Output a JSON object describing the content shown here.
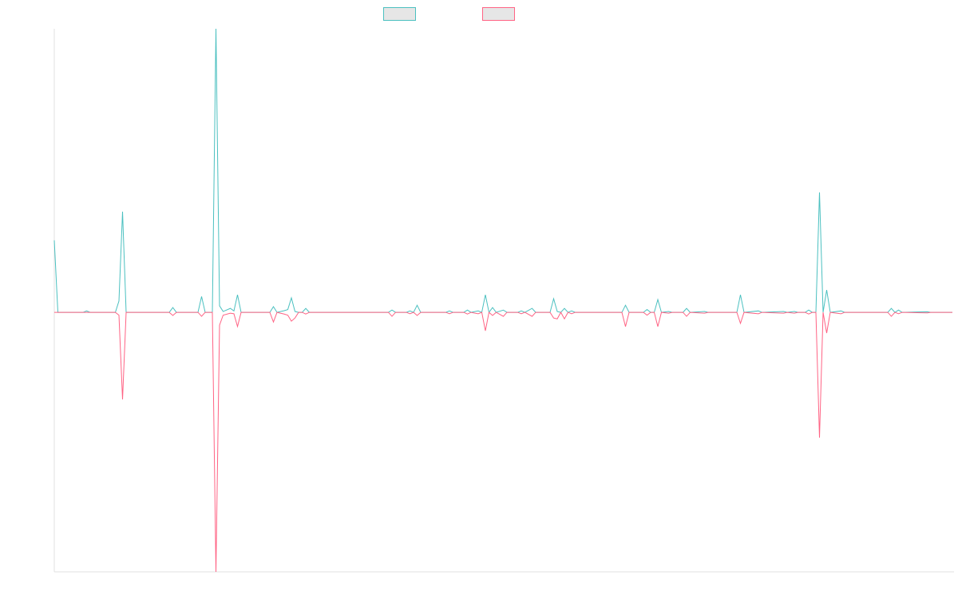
{
  "chart_data": {
    "type": "line",
    "legend": "top",
    "xlim": [
      0,
      250
    ],
    "ylim": [
      -91.5,
      100
    ],
    "x": [
      0,
      1,
      8,
      9,
      10,
      17,
      18,
      19,
      20,
      32,
      33,
      34,
      40,
      41,
      42,
      44,
      45,
      46,
      47,
      49,
      50,
      51,
      52,
      60,
      61,
      62,
      64,
      65,
      66,
      67,
      68,
      69,
      70,
      71,
      93,
      94,
      95,
      98,
      99,
      100,
      101,
      102,
      109,
      110,
      111,
      114,
      115,
      116,
      118,
      119,
      120,
      121,
      122,
      123,
      125,
      126,
      129,
      130,
      131,
      133,
      134,
      138,
      139,
      140,
      141,
      142,
      143,
      144,
      145,
      158,
      159,
      160,
      164,
      165,
      166,
      167,
      168,
      169,
      171,
      172,
      175,
      176,
      177,
      181,
      182,
      190,
      191,
      192,
      196,
      197,
      203,
      204,
      206,
      207,
      209,
      210,
      211,
      212,
      213,
      214,
      215,
      216,
      219,
      220,
      232,
      233,
      234,
      235,
      236,
      243,
      244,
      250
    ],
    "series": [
      {
        "color": "#4bc0c0",
        "values": [
          25.4,
          0,
          0,
          0.5,
          0,
          0,
          4,
          35.5,
          0,
          0,
          1.7,
          0,
          0,
          5.6,
          0,
          0,
          100,
          2.3,
          0.3,
          1.4,
          0.5,
          6.2,
          0,
          0,
          2,
          0,
          0.6,
          1,
          5.1,
          0.3,
          0,
          0,
          1.4,
          0,
          0,
          0.8,
          0,
          0,
          0.5,
          0,
          2.5,
          0,
          0,
          0.5,
          0,
          0,
          0.8,
          0,
          0.5,
          0,
          6.2,
          0,
          1.7,
          0,
          0.8,
          0,
          0,
          0.5,
          0,
          1.4,
          0,
          0,
          4.8,
          0.3,
          0,
          1.4,
          0,
          0.5,
          0,
          0,
          2.5,
          0,
          0,
          1,
          0,
          0,
          4.5,
          0,
          0.3,
          0,
          0,
          1.4,
          0,
          0.3,
          0,
          0,
          6.2,
          0,
          0.5,
          0,
          0.3,
          0,
          0.3,
          0,
          0,
          0.8,
          0,
          0,
          42.3,
          0,
          7.9,
          0,
          0.5,
          0,
          0,
          1.4,
          0,
          0.8,
          0,
          0.2,
          0,
          0
        ]
      },
      {
        "color": "#ff6384",
        "values": [
          0,
          0,
          0,
          0,
          0,
          0,
          -1,
          -30.7,
          0,
          0,
          -1.1,
          0,
          0,
          -1.4,
          0,
          0,
          -91.5,
          -4.5,
          -1,
          -0.3,
          -0.5,
          -5,
          0,
          0,
          -3.4,
          0,
          -0.6,
          -1,
          -3.1,
          -2,
          0,
          0,
          -0.6,
          0,
          0,
          -1.4,
          0,
          0,
          -0.5,
          0,
          -1.1,
          0,
          0,
          -0.5,
          0,
          0,
          -0.6,
          0,
          -0.5,
          0,
          -6.5,
          0,
          -1.1,
          0,
          -1.4,
          0,
          0,
          -0.5,
          0,
          -1.4,
          0,
          0,
          -2,
          -2.3,
          0,
          -2.3,
          0,
          -0.5,
          0,
          0,
          -5,
          0,
          0,
          -1,
          0,
          0,
          -5,
          0,
          -0.3,
          0,
          0,
          -1.4,
          0,
          -0.3,
          0,
          0,
          -3.9,
          0,
          -0.5,
          0,
          -0.3,
          0,
          -0.3,
          0,
          0,
          -0.6,
          0,
          0,
          -44.2,
          0,
          -7.3,
          0,
          -0.5,
          0,
          0,
          -1.4,
          0,
          -0.5,
          0,
          -0.2,
          0,
          0
        ]
      }
    ]
  }
}
